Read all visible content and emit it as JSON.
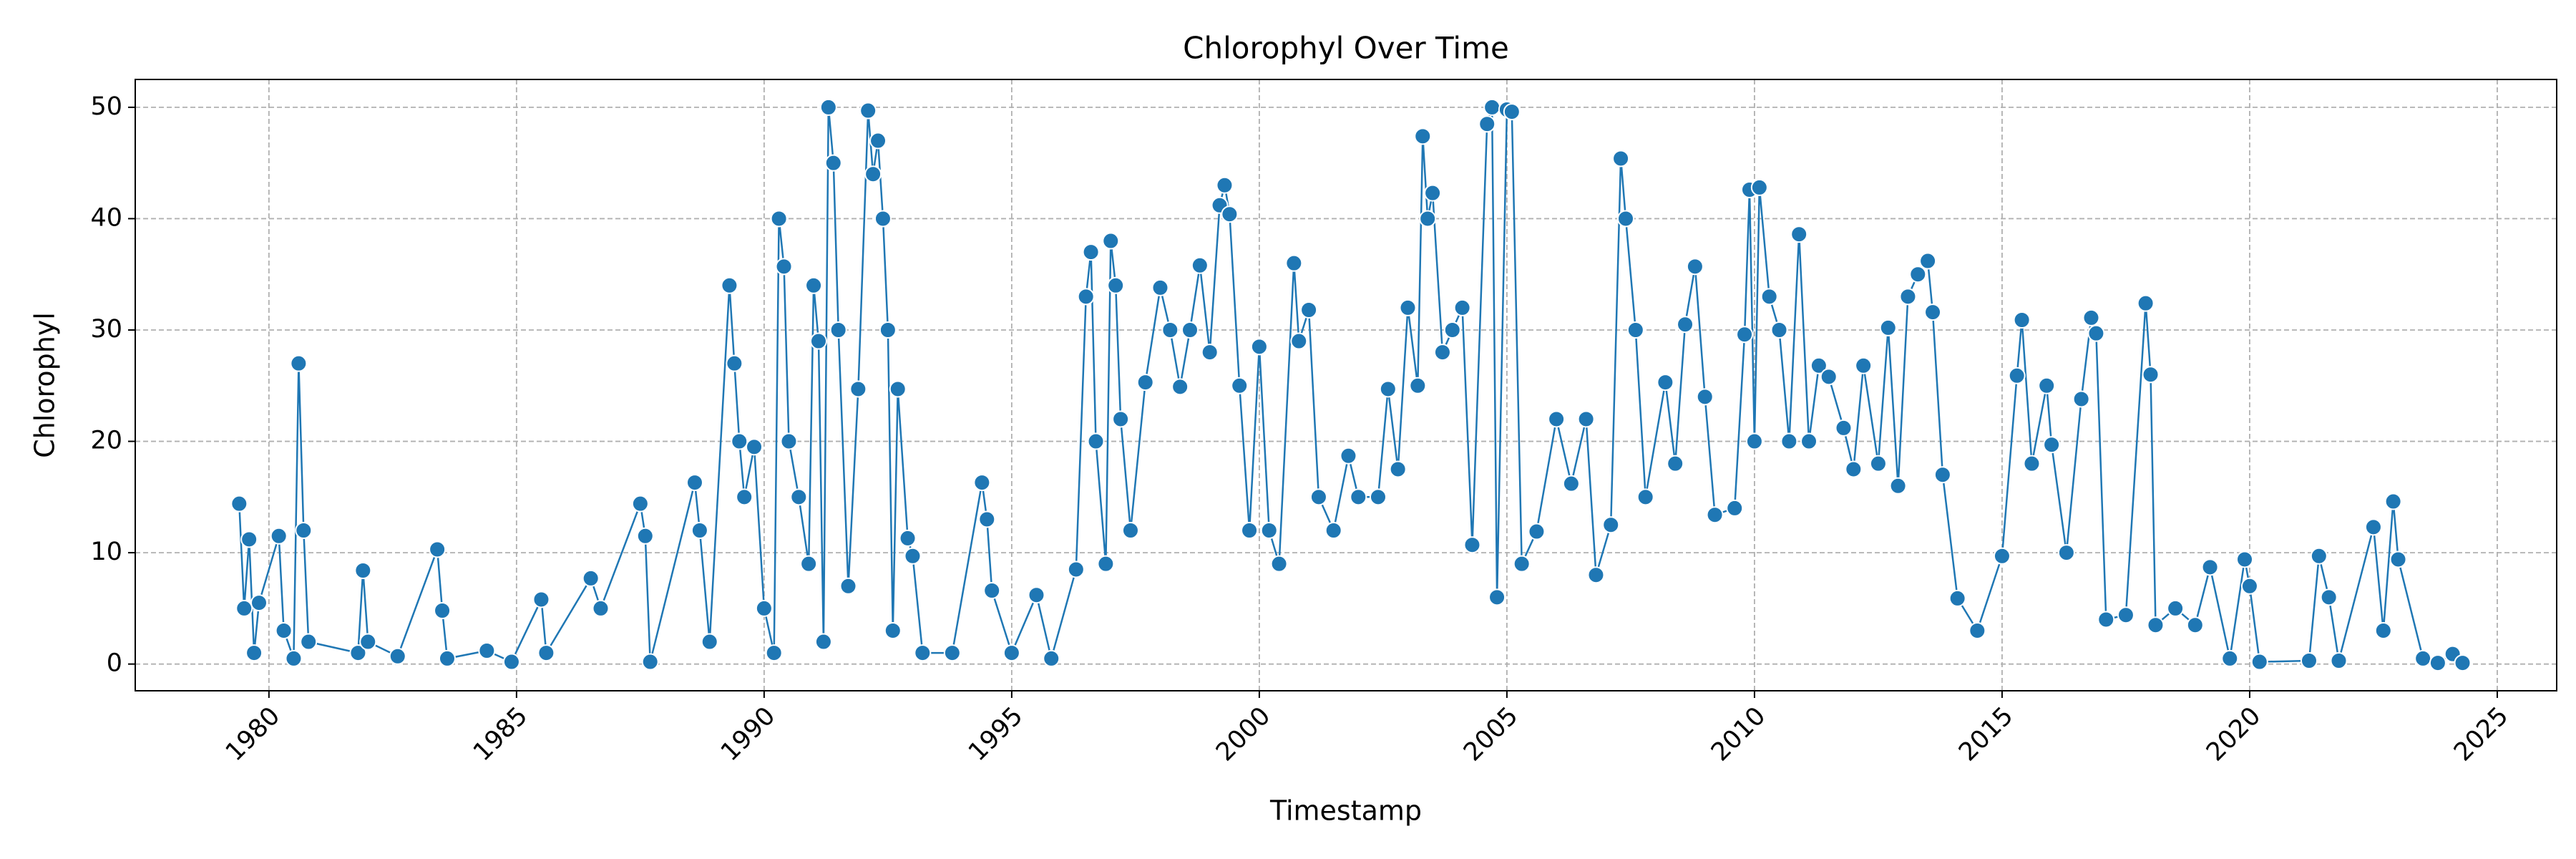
{
  "chart_data": {
    "type": "line",
    "title": "Chlorophyl Over Time",
    "xlabel": "Timestamp",
    "ylabel": "Chlorophyl",
    "color": "#1f77b4",
    "grid": true,
    "xlim": [
      1977.3,
      2026.2
    ],
    "ylim": [
      -2.4,
      52.5
    ],
    "xticks": [
      1980,
      1985,
      1990,
      1995,
      2000,
      2005,
      2010,
      2015,
      2020,
      2025
    ],
    "yticks": [
      0,
      10,
      20,
      30,
      40,
      50
    ],
    "x": [
      1979.4,
      1979.5,
      1979.6,
      1979.7,
      1979.8,
      1980.2,
      1980.3,
      1980.5,
      1980.6,
      1980.7,
      1980.8,
      1981.8,
      1981.9,
      1982.0,
      1982.6,
      1983.4,
      1983.5,
      1983.6,
      1984.4,
      1984.9,
      1985.5,
      1985.6,
      1986.5,
      1986.7,
      1987.5,
      1987.6,
      1987.7,
      1988.6,
      1988.7,
      1988.9,
      1989.3,
      1989.4,
      1989.5,
      1989.6,
      1989.8,
      1990.0,
      1990.2,
      1990.3,
      1990.4,
      1990.5,
      1990.7,
      1990.9,
      1991.0,
      1991.1,
      1991.2,
      1991.3,
      1991.4,
      1991.5,
      1991.7,
      1991.9,
      1992.1,
      1992.2,
      1992.3,
      1992.4,
      1992.5,
      1992.6,
      1992.7,
      1992.9,
      1993.0,
      1993.2,
      1993.8,
      1994.4,
      1994.5,
      1994.6,
      1995.0,
      1995.5,
      1995.8,
      1996.3,
      1996.5,
      1996.6,
      1996.7,
      1996.9,
      1997.0,
      1997.1,
      1997.2,
      1997.4,
      1997.7,
      1998.0,
      1998.2,
      1998.4,
      1998.6,
      1998.8,
      1999.0,
      1999.2,
      1999.3,
      1999.4,
      1999.6,
      1999.8,
      2000.0,
      2000.2,
      2000.4,
      2000.7,
      2000.8,
      2001.0,
      2001.2,
      2001.5,
      2001.8,
      2002.0,
      2002.4,
      2002.6,
      2002.8,
      2003.0,
      2003.2,
      2003.3,
      2003.4,
      2003.5,
      2003.7,
      2003.9,
      2004.1,
      2004.3,
      2004.6,
      2004.7,
      2004.8,
      2005.0,
      2005.1,
      2005.3,
      2005.6,
      2006.0,
      2006.3,
      2006.6,
      2006.8,
      2007.1,
      2007.3,
      2007.4,
      2007.6,
      2007.8,
      2008.2,
      2008.4,
      2008.6,
      2008.8,
      2009.0,
      2009.2,
      2009.6,
      2009.8,
      2009.9,
      2010.0,
      2010.1,
      2010.3,
      2010.5,
      2010.7,
      2010.9,
      2011.1,
      2011.3,
      2011.5,
      2011.8,
      2012.0,
      2012.2,
      2012.5,
      2012.7,
      2012.9,
      2013.1,
      2013.3,
      2013.5,
      2013.6,
      2013.8,
      2014.1,
      2014.5,
      2015.0,
      2015.3,
      2015.4,
      2015.6,
      2015.9,
      2016.0,
      2016.3,
      2016.6,
      2016.8,
      2016.9,
      2017.1,
      2017.5,
      2017.9,
      2018.0,
      2018.1,
      2018.5,
      2018.9,
      2019.2,
      2019.6,
      2019.9,
      2020.0,
      2020.2,
      2021.2,
      2021.4,
      2021.6,
      2021.8,
      2022.5,
      2022.7,
      2022.9,
      2023.0,
      2023.5,
      2023.8,
      2024.1,
      2024.3
    ],
    "values": [
      14.4,
      5,
      11.2,
      1,
      5.5,
      11.5,
      3,
      0.5,
      27,
      12,
      2,
      1,
      8.4,
      2,
      0.7,
      10.3,
      4.8,
      0.5,
      1.2,
      0.2,
      5.8,
      1,
      7.7,
      5,
      14.4,
      11.5,
      0.2,
      16.3,
      12,
      2,
      34,
      27,
      20,
      15,
      19.5,
      5,
      1,
      40,
      35.7,
      20,
      15,
      9,
      34,
      29,
      2,
      50,
      45,
      30,
      7,
      24.7,
      49.7,
      44,
      47,
      40,
      30,
      3,
      24.7,
      11.3,
      9.7,
      1,
      1,
      16.3,
      13,
      6.6,
      1,
      6.2,
      0.5,
      8.5,
      33,
      37,
      20,
      9,
      38,
      34,
      22,
      12,
      25.3,
      33.8,
      30,
      24.9,
      30,
      35.8,
      28,
      41.2,
      43,
      40.4,
      25,
      12,
      28.5,
      12,
      9,
      36,
      29,
      31.8,
      15,
      12,
      18.7,
      15,
      15,
      24.7,
      17.5,
      32,
      25,
      47.4,
      40,
      42.3,
      28,
      30,
      32,
      10.7,
      48.5,
      50,
      6,
      49.8,
      49.6,
      9,
      11.9,
      22,
      16.2,
      22,
      8,
      12.5,
      45.4,
      40,
      30,
      15,
      25.3,
      18,
      30.5,
      35.7,
      24,
      13.4,
      14,
      29.6,
      42.6,
      20,
      42.8,
      33,
      30,
      20,
      38.6,
      20,
      26.8,
      25.8,
      21.2,
      17.5,
      26.8,
      18,
      30.2,
      16,
      33,
      35,
      36.2,
      31.6,
      17,
      5.9,
      3,
      9.7,
      25.9,
      30.9,
      18,
      25,
      19.7,
      10,
      23.8,
      31.1,
      29.7,
      4,
      4.4,
      32.4,
      26,
      3.5,
      5,
      3.5,
      8.7,
      0.5,
      9.4,
      7,
      0.2,
      0.3,
      9.7,
      6,
      0.3,
      12.3,
      3,
      14.6,
      9.4,
      0.5,
      0.1,
      0.9,
      0.1
    ]
  }
}
